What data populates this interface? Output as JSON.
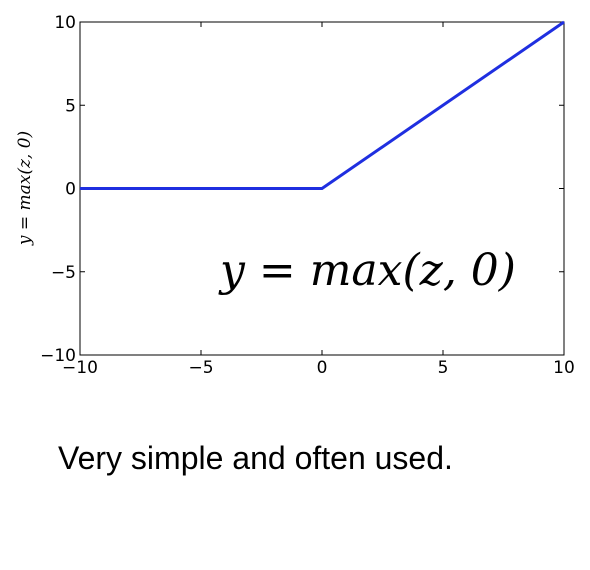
{
  "chart_data": {
    "type": "line",
    "series": [
      {
        "x": [
          -10,
          0,
          10
        ],
        "y": [
          0,
          0,
          10
        ],
        "color": "#1f2fe0"
      }
    ],
    "xlim": [
      -10,
      10
    ],
    "ylim": [
      -10,
      10
    ],
    "xticks": [
      -10,
      -5,
      0,
      5,
      10
    ],
    "yticks": [
      -10,
      -5,
      0,
      5,
      10
    ],
    "xtick_labels": [
      "−10",
      "−5",
      "0",
      "5",
      "10"
    ],
    "ytick_labels": [
      "−10",
      "−5",
      "0",
      "5",
      "10"
    ],
    "xlabel": "",
    "ylabel": "y = max(z, 0)",
    "annotation": "y = max(z, 0)",
    "grid": false
  },
  "caption": "Very simple and often used."
}
